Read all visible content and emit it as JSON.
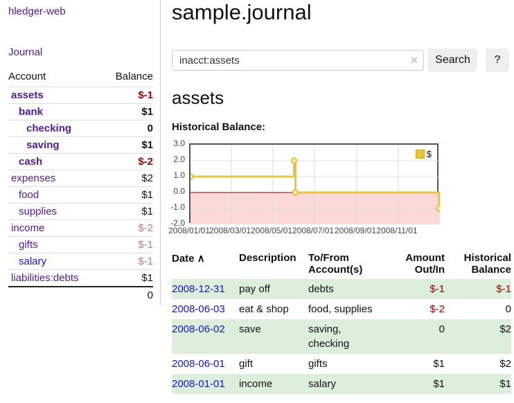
{
  "app": {
    "brand": "hledger-web",
    "nav_journal": "Journal"
  },
  "sidebar": {
    "account_header": "Account",
    "balance_header": "Balance",
    "accounts": [
      {
        "name": "assets",
        "indent": 1,
        "bold": true,
        "balance": "$-1",
        "balance_style": "neg-strong"
      },
      {
        "name": "bank",
        "indent": 2,
        "bold": true,
        "balance": "$1",
        "balance_style": "pos"
      },
      {
        "name": "checking",
        "indent": 3,
        "bold": true,
        "balance": "0",
        "balance_style": "pos"
      },
      {
        "name": "saving",
        "indent": 3,
        "bold": true,
        "balance": "$1",
        "balance_style": "pos"
      },
      {
        "name": "cash",
        "indent": 2,
        "bold": true,
        "balance": "$-2",
        "balance_style": "neg-strong"
      },
      {
        "name": "expenses",
        "indent": 1,
        "bold": false,
        "balance": "$2",
        "balance_style": "pos"
      },
      {
        "name": "food",
        "indent": 2,
        "bold": false,
        "balance": "$1",
        "balance_style": "pos"
      },
      {
        "name": "supplies",
        "indent": 2,
        "bold": false,
        "balance": "$1",
        "balance_style": "pos"
      },
      {
        "name": "income",
        "indent": 1,
        "bold": false,
        "balance": "$-2",
        "balance_style": "neg-faded"
      },
      {
        "name": "gifts",
        "indent": 2,
        "bold": false,
        "balance": "$-1",
        "balance_style": "neg-faded"
      },
      {
        "name": "salary",
        "indent": 2,
        "bold": false,
        "balance": "$-1",
        "balance_style": "neg-faded",
        "link_style": "unvisited"
      },
      {
        "name": "liabilities:debts",
        "indent": 1,
        "bold": false,
        "balance": "$1",
        "balance_style": "pos"
      }
    ],
    "total": "0"
  },
  "header": {
    "title": "sample.journal"
  },
  "search": {
    "value": "inacct:assets",
    "clear_icon": "✕",
    "button_label": "Search",
    "help_label": "?"
  },
  "main": {
    "heading": "assets",
    "chart_label": "Historical Balance:"
  },
  "chart_data": {
    "type": "line",
    "title": "Historical Balance:",
    "legend": "$",
    "legend_position": "top-right",
    "line_color": "#EDC240",
    "negative_fill": "#FBD9D9",
    "zero_line_color": "#800000",
    "grid_color": "#DDDDDD",
    "ylim": [
      -2,
      3
    ],
    "y_ticks": [
      "3.0",
      "2.0",
      "1.0",
      "0.0",
      "-1.0",
      "-2.0"
    ],
    "y_tick_values": [
      3,
      2,
      1,
      0,
      -1,
      -2
    ],
    "x_ticks": [
      "2008/01/01",
      "2008/03/01",
      "2008/05/01",
      "2008/07/01",
      "2008/09/01",
      "2008/11/01"
    ],
    "x_tick_dates": [
      "2008-01-01",
      "2008-03-01",
      "2008-05-01",
      "2008-07-01",
      "2008-09-01",
      "2008-11-01"
    ],
    "x_range": [
      "2008-01-01",
      "2008-12-31"
    ],
    "series": [
      {
        "name": "$",
        "step": true,
        "points": [
          {
            "date": "2008-01-01",
            "value": 1
          },
          {
            "date": "2008-06-01",
            "value": 2
          },
          {
            "date": "2008-06-03",
            "value": 0
          },
          {
            "date": "2008-12-31",
            "value": -1
          }
        ]
      }
    ]
  },
  "register": {
    "headers": {
      "date": "Date",
      "sort_indicator": "∧",
      "description": "Description",
      "account": "To/From\nAccount(s)",
      "amount": "Amount\nOut/In",
      "balance": "Historical\nBalance"
    },
    "rows": [
      {
        "date": "2008-12-31",
        "description": "pay off",
        "account": "debts",
        "amount": "$-1",
        "balance": "$-1"
      },
      {
        "date": "2008-06-03",
        "description": "eat & shop",
        "account": "food, supplies",
        "amount": "$-2",
        "balance": "0"
      },
      {
        "date": "2008-06-02",
        "description": "save",
        "account": "saving, checking",
        "amount": "0",
        "balance": "$2"
      },
      {
        "date": "2008-06-01",
        "description": "gift",
        "account": "gifts",
        "amount": "$1",
        "balance": "$2"
      },
      {
        "date": "2008-01-01",
        "description": "income",
        "account": "salary",
        "amount": "$1",
        "balance": "$1"
      }
    ]
  }
}
